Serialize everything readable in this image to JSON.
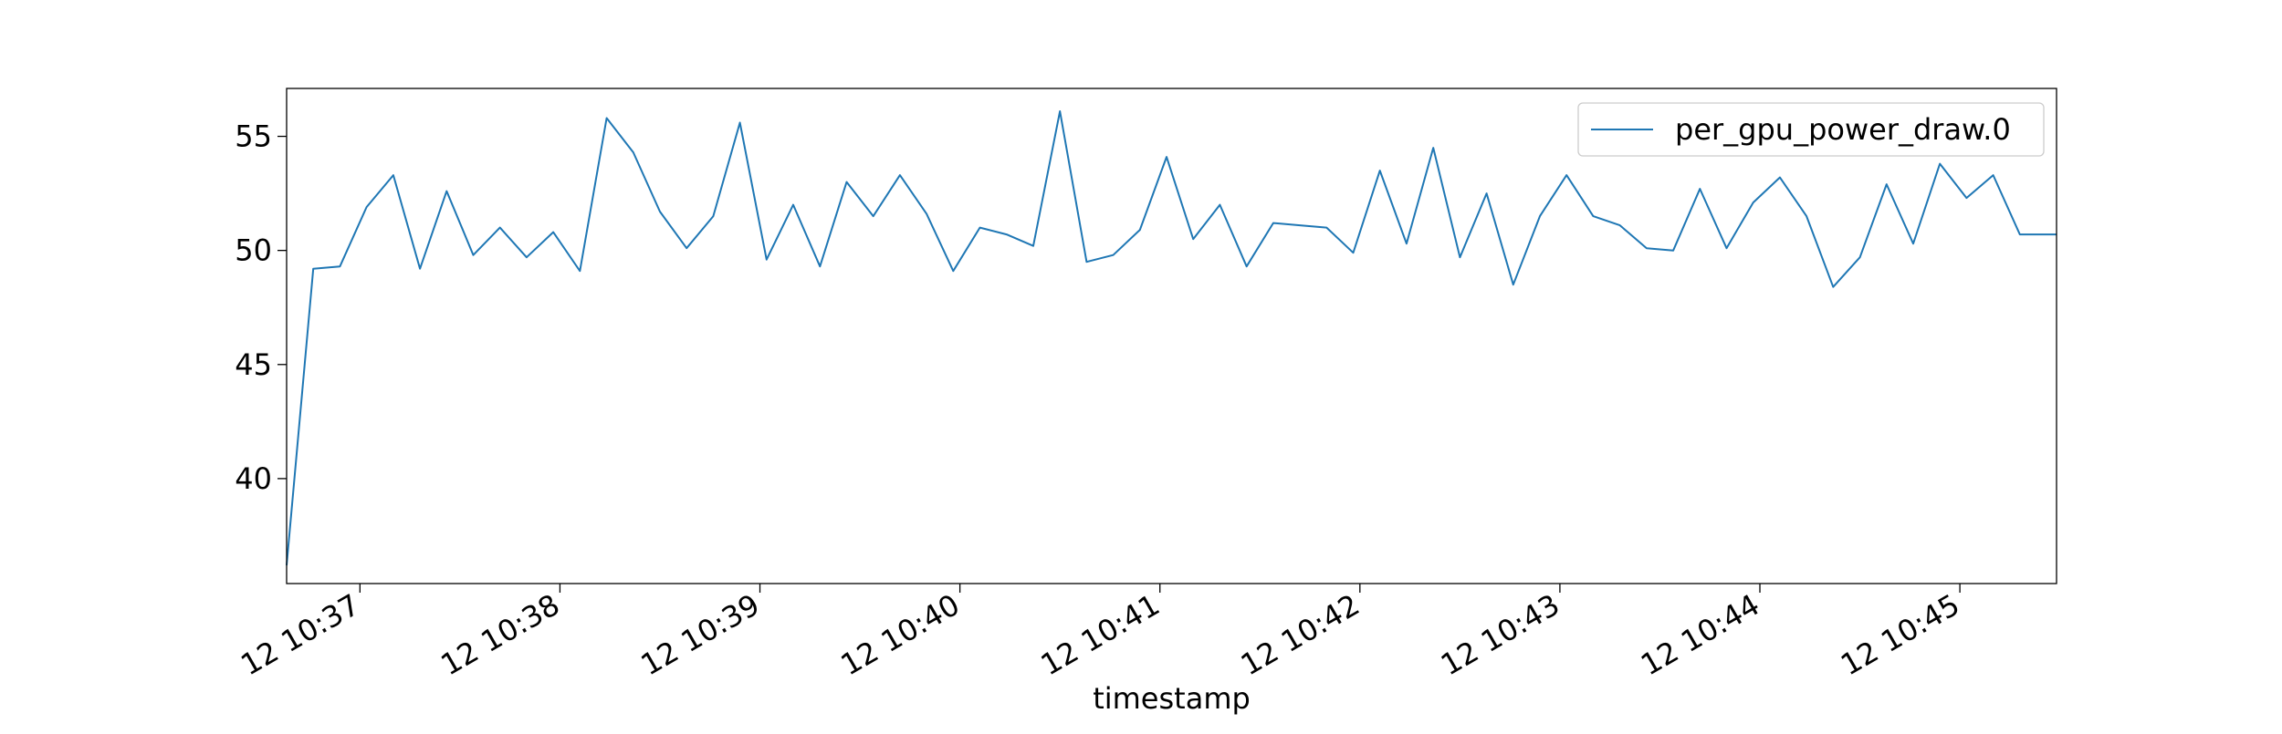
{
  "chart_data": {
    "type": "line",
    "title": "",
    "xlabel": "timestamp",
    "ylabel": "",
    "grid": false,
    "legend_placement": "top-right",
    "x_axis": {
      "unit": "minutes",
      "range": [
        "12 10:36:38",
        "12 10:45:29"
      ],
      "ticks": [
        "12 10:37",
        "12 10:38",
        "12 10:39",
        "12 10:40",
        "12 10:41",
        "12 10:42",
        "12 10:43",
        "12 10:44",
        "12 10:45"
      ]
    },
    "y_axis": {
      "range": [
        35.4,
        57.1
      ],
      "ticks": [
        40,
        45,
        50,
        55
      ],
      "tick_labels": [
        "40",
        "45",
        "50",
        "55"
      ]
    },
    "series": [
      {
        "name": "per_gpu_power_draw.0",
        "color": "#1f77b4",
        "x": [
          "12 10:36:38",
          "12 10:36:46",
          "12 10:36:54",
          "12 10:37:02",
          "12 10:37:10",
          "12 10:37:18",
          "12 10:37:26",
          "12 10:37:34",
          "12 10:37:42",
          "12 10:37:50",
          "12 10:37:58",
          "12 10:38:06",
          "12 10:38:14",
          "12 10:38:22",
          "12 10:38:30",
          "12 10:38:38",
          "12 10:38:46",
          "12 10:38:54",
          "12 10:39:02",
          "12 10:39:10",
          "12 10:39:18",
          "12 10:39:26",
          "12 10:39:34",
          "12 10:39:42",
          "12 10:39:50",
          "12 10:39:58",
          "12 10:40:06",
          "12 10:40:14",
          "12 10:40:22",
          "12 10:40:30",
          "12 10:40:38",
          "12 10:40:46",
          "12 10:40:54",
          "12 10:41:02",
          "12 10:41:10",
          "12 10:41:18",
          "12 10:41:26",
          "12 10:41:34",
          "12 10:41:42",
          "12 10:41:50",
          "12 10:41:58",
          "12 10:42:06",
          "12 10:42:14",
          "12 10:42:22",
          "12 10:42:30",
          "12 10:42:38",
          "12 10:42:46",
          "12 10:42:54",
          "12 10:43:02",
          "12 10:43:10",
          "12 10:43:18",
          "12 10:43:26",
          "12 10:43:34",
          "12 10:43:42",
          "12 10:43:50",
          "12 10:43:58",
          "12 10:44:06",
          "12 10:44:14",
          "12 10:44:22",
          "12 10:44:30",
          "12 10:44:38",
          "12 10:44:46",
          "12 10:44:54",
          "12 10:45:02",
          "12 10:45:10",
          "12 10:45:18",
          "12 10:45:26",
          "12 10:45:29"
        ],
        "values": [
          36.2,
          49.2,
          49.3,
          51.9,
          53.3,
          49.2,
          52.6,
          49.8,
          51.0,
          49.7,
          50.8,
          49.1,
          55.8,
          54.3,
          51.7,
          50.1,
          51.5,
          55.6,
          49.6,
          52.0,
          49.3,
          53.0,
          51.5,
          53.3,
          51.6,
          49.1,
          51.0,
          50.7,
          50.2,
          56.1,
          49.5,
          49.8,
          50.9,
          54.1,
          50.5,
          52.0,
          49.3,
          51.2,
          51.1,
          51.0,
          49.9,
          53.5,
          50.3,
          54.5,
          49.7,
          52.5,
          48.5,
          51.5,
          53.3,
          51.5,
          51.1,
          50.1,
          50.0,
          52.7,
          50.1,
          52.1,
          53.2,
          51.5,
          48.4,
          49.7,
          52.9,
          50.3,
          53.8,
          52.3,
          53.3,
          50.7,
          50.7,
          50.7
        ]
      }
    ]
  }
}
